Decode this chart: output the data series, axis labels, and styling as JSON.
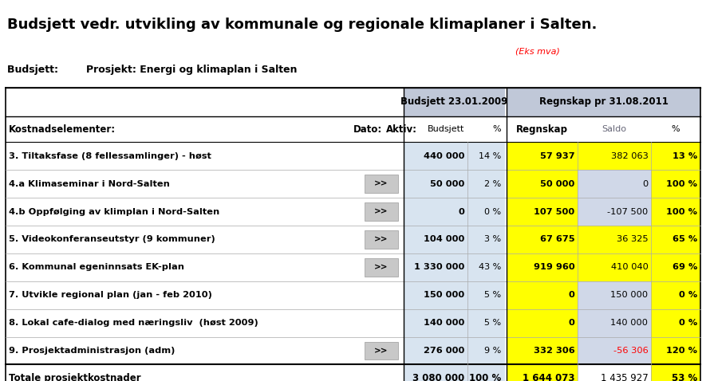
{
  "title": "Budsjett vedr. utvikling av kommunale og regionale klimaplaner i Salten.",
  "subtitle1": "Budsjett:        Prosjekt: Energi og klimaplan i Salten",
  "subtitle2": "(Eks mva)",
  "header_budget": "Budsjett 23.01.2009",
  "header_regnskap": "Regnskap pr 31.08.2011",
  "rows": [
    {
      "label": "3. Tiltaksfase (8 fellessamlinger) - høst",
      "aktiv": "",
      "budsjett": "440 000",
      "pct_b": "14 %",
      "regnskap": "57 937",
      "saldo": "382 063",
      "pct_r": "13 %",
      "saldo_color": "#ffff00",
      "saldo_txt_color": "#000000"
    },
    {
      "label": "4.a Klimaseminar i Nord-Salten",
      "aktiv": ">>",
      "budsjett": "50 000",
      "pct_b": "2 %",
      "regnskap": "50 000",
      "saldo": "0",
      "pct_r": "100 %",
      "saldo_color": "#d0d8e8",
      "saldo_txt_color": "#000000"
    },
    {
      "label": "4.b Oppfølging av klimplan i Nord-Salten",
      "aktiv": ">>",
      "budsjett": "0",
      "pct_b": "0 %",
      "regnskap": "107 500",
      "saldo": "-107 500",
      "pct_r": "100 %",
      "saldo_color": "#d0d8e8",
      "saldo_txt_color": "#000000"
    },
    {
      "label": "5. Videokonferanseutstyr (9 kommuner)",
      "aktiv": ">>",
      "budsjett": "104 000",
      "pct_b": "3 %",
      "regnskap": "67 675",
      "saldo": "36 325",
      "pct_r": "65 %",
      "saldo_color": "#ffff00",
      "saldo_txt_color": "#000000"
    },
    {
      "label": "6. Kommunal egeninnsats EK-plan",
      "aktiv": ">>",
      "budsjett": "1 330 000",
      "pct_b": "43 %",
      "regnskap": "919 960",
      "saldo": "410 040",
      "pct_r": "69 %",
      "saldo_color": "#ffff00",
      "saldo_txt_color": "#000000"
    },
    {
      "label": "7. Utvikle regional plan (jan - feb 2010)",
      "aktiv": "",
      "budsjett": "150 000",
      "pct_b": "5 %",
      "regnskap": "0",
      "saldo": "150 000",
      "pct_r": "0 %",
      "saldo_color": "#d0d8e8",
      "saldo_txt_color": "#000000"
    },
    {
      "label": "8. Lokal cafe-dialog med næringsliv  (høst 2009)",
      "aktiv": "",
      "budsjett": "140 000",
      "pct_b": "5 %",
      "regnskap": "0",
      "saldo": "140 000",
      "pct_r": "0 %",
      "saldo_color": "#d0d8e8",
      "saldo_txt_color": "#000000"
    },
    {
      "label": "9. Prosjektadministrasjon (adm)",
      "aktiv": ">>",
      "budsjett": "276 000",
      "pct_b": "9 %",
      "regnskap": "332 306",
      "saldo": "-56 306",
      "pct_r": "120 %",
      "saldo_color": "#d0d8e8",
      "saldo_txt_color": "#ff0000"
    }
  ],
  "total_row": {
    "label": "Totale prosjektkostnader",
    "budsjett": "3 080 000",
    "pct_b": "100 %",
    "regnskap": "1 644 073",
    "saldo": "1 435 927",
    "pct_r": "53 %"
  },
  "bg_color": "#ffffff",
  "header_bg": "#c0c8d8",
  "budget_col_bg": "#d8e4f0",
  "yellow": "#ffff00",
  "light_blue": "#d0d8e8"
}
